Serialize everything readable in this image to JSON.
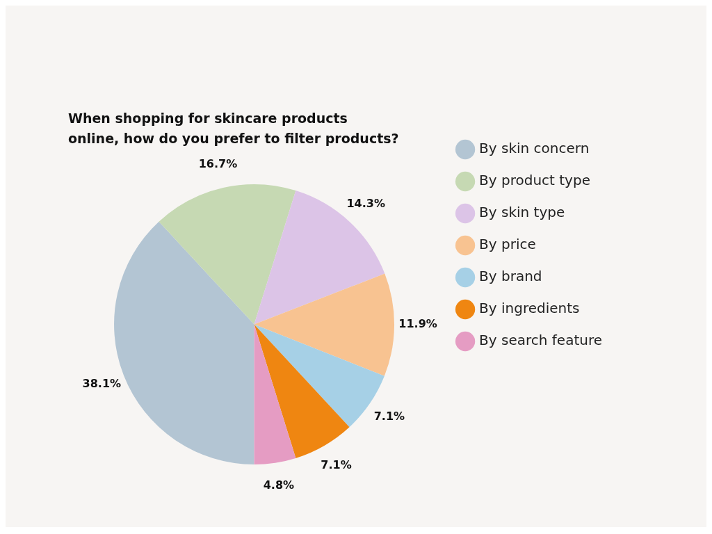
{
  "chart_data": {
    "type": "pie",
    "title": "When shopping for skincare products\nonline, how do you prefer to filter products?",
    "categories": [
      "By skin concern",
      "By product type",
      "By skin type",
      "By price",
      "By brand",
      "By ingredients",
      "By search feature"
    ],
    "values": [
      38.1,
      16.7,
      14.3,
      11.9,
      7.1,
      7.1,
      4.8
    ],
    "value_labels": [
      "38.1%",
      "16.7%",
      "14.3%",
      "11.9%",
      "7.1%",
      "7.1%",
      "4.8%"
    ],
    "colors": [
      "#b3c5d3",
      "#c6d9b3",
      "#dcc4e7",
      "#f8c391",
      "#a6d0e6",
      "#ef8611",
      "#e59cc3"
    ],
    "legend": "right"
  }
}
